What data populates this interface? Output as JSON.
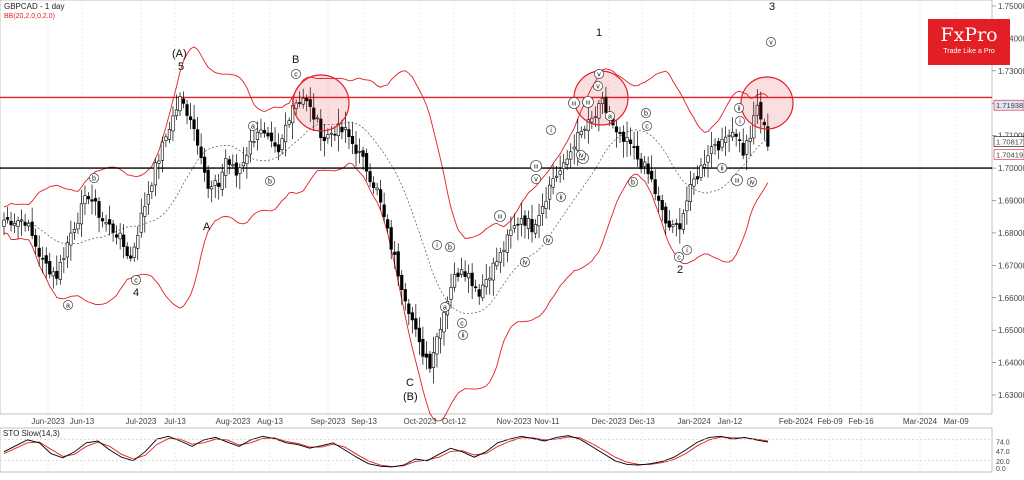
{
  "header": {
    "symbol": "GBPCAD - 1 day",
    "indicator": "BB(20,2.0,0,2.0)",
    "stoch_label": "STO Slow(14,3)"
  },
  "logo": {
    "name": "FxPro",
    "tagline": "Trade Like a Pro"
  },
  "colors": {
    "up": "#ffffff",
    "down": "#000000",
    "bands": "#e31e24",
    "mid": "#555555",
    "stoch_k": "#000000",
    "stoch_d": "#e31e24",
    "logo_bg": "#e31e24",
    "green_mark": "#2e9a2e"
  },
  "chart_data": [
    {
      "type": "candlestick",
      "title": "GBPCAD - 1 day",
      "ylim": [
        1.625,
        1.755
      ],
      "y_ticks": [
        "1.75000",
        "1.74000",
        "1.73000",
        "1.72000",
        "1.71000",
        "1.70000",
        "1.69000",
        "1.68000",
        "1.67000",
        "1.66000",
        "1.65000",
        "1.64000",
        "1.63000"
      ],
      "x_ticks": [
        "Jun-2023",
        "Jun-13",
        "Jul-2023",
        "Jul-13",
        "Aug-2023",
        "Aug-13",
        "Sep-2023",
        "Sep-13",
        "Oct-2023",
        "Oct-12",
        "Nov-2023",
        "Nov-11",
        "Dec-2023",
        "Dec-13",
        "Jan-2024",
        "Jan-12",
        "Feb-2024",
        "Feb-09",
        "Feb-16",
        "Mar-2024",
        "Mar-09"
      ],
      "horizontal_lines": [
        {
          "value": 1.7218,
          "color": "#e31e24"
        },
        {
          "value": 1.7,
          "color": "#000000"
        }
      ],
      "price_tags": [
        {
          "label": "1.71938",
          "value": 1.7194
        },
        {
          "label": "1.70817",
          "value": 1.7082
        },
        {
          "label": "1.70419",
          "value": 1.7042
        }
      ],
      "close_path": [
        [
          0,
          1.684
        ],
        [
          6,
          1.684
        ],
        [
          11,
          1.671
        ],
        [
          15,
          1.667
        ],
        [
          19,
          1.68
        ],
        [
          24,
          1.692
        ],
        [
          28,
          1.684
        ],
        [
          32,
          1.68
        ],
        [
          36,
          1.672
        ],
        [
          39,
          1.685
        ],
        [
          43,
          1.7
        ],
        [
          47,
          1.713
        ],
        [
          50,
          1.721
        ],
        [
          53,
          1.716
        ],
        [
          56,
          1.705
        ],
        [
          58,
          1.693
        ],
        [
          61,
          1.695
        ],
        [
          63,
          1.703
        ],
        [
          66,
          1.698
        ],
        [
          69,
          1.705
        ],
        [
          72,
          1.712
        ],
        [
          75,
          1.708
        ],
        [
          78,
          1.704
        ],
        [
          80,
          1.713
        ],
        [
          82,
          1.72
        ],
        [
          85,
          1.722
        ],
        [
          88,
          1.716
        ],
        [
          91,
          1.709
        ],
        [
          94,
          1.712
        ],
        [
          97,
          1.711
        ],
        [
          100,
          1.706
        ],
        [
          103,
          1.7
        ],
        [
          106,
          1.693
        ],
        [
          109,
          1.68
        ],
        [
          112,
          1.668
        ],
        [
          115,
          1.657
        ],
        [
          118,
          1.645
        ],
        [
          121,
          1.64
        ],
        [
          124,
          1.652
        ],
        [
          127,
          1.664
        ],
        [
          130,
          1.67
        ],
        [
          132,
          1.667
        ],
        [
          135,
          1.662
        ],
        [
          138,
          1.668
        ],
        [
          141,
          1.673
        ],
        [
          144,
          1.68
        ],
        [
          147,
          1.685
        ],
        [
          150,
          1.682
        ],
        [
          153,
          1.689
        ],
        [
          156,
          1.697
        ],
        [
          159,
          1.7
        ],
        [
          162,
          1.708
        ],
        [
          165,
          1.712
        ],
        [
          168,
          1.716
        ],
        [
          170,
          1.72
        ],
        [
          172,
          1.715
        ],
        [
          174,
          1.71
        ],
        [
          176,
          1.708
        ],
        [
          178,
          1.707
        ],
        [
          180,
          1.703
        ],
        [
          182,
          1.7
        ],
        [
          184,
          1.696
        ],
        [
          186,
          1.689
        ],
        [
          188,
          1.683
        ],
        [
          190,
          1.681
        ],
        [
          192,
          1.683
        ],
        [
          194,
          1.69
        ],
        [
          196,
          1.696
        ],
        [
          198,
          1.7
        ],
        [
          200,
          1.705
        ],
        [
          202,
          1.708
        ],
        [
          204,
          1.707
        ],
        [
          206,
          1.712
        ],
        [
          208,
          1.711
        ],
        [
          210,
          1.705
        ],
        [
          212,
          1.71
        ],
        [
          214,
          1.719
        ],
        [
          216,
          1.712
        ],
        [
          217,
          1.708
        ]
      ],
      "candle_count": 218
    },
    {
      "type": "line",
      "title": "STO Slow(14,3)",
      "ylim": [
        0,
        100
      ],
      "y_ticks": [
        "74.0",
        "47.0",
        "20.0",
        "0.0"
      ],
      "series": [
        {
          "values": [
            45,
            62,
            78,
            70,
            40,
            28,
            45,
            70,
            75,
            50,
            30,
            20,
            45,
            80,
            88,
            75,
            60,
            78,
            85,
            72,
            60,
            78,
            88,
            82,
            70,
            65,
            55,
            62,
            70,
            50,
            30,
            12,
            5,
            3,
            8,
            25,
            20,
            38,
            55,
            45,
            30,
            45,
            70,
            80,
            88,
            82,
            75,
            85,
            90,
            80,
            60,
            40,
            20,
            10,
            8,
            12,
            18,
            30,
            50,
            72,
            85,
            88,
            80,
            85,
            78,
            72
          ]
        },
        {
          "values": [
            40,
            55,
            70,
            72,
            52,
            32,
            38,
            60,
            72,
            60,
            38,
            25,
            35,
            65,
            82,
            80,
            66,
            70,
            80,
            78,
            64,
            70,
            82,
            84,
            74,
            68,
            58,
            58,
            66,
            58,
            38,
            20,
            8,
            4,
            6,
            18,
            22,
            30,
            46,
            48,
            36,
            40,
            60,
            74,
            84,
            84,
            78,
            80,
            86,
            84,
            68,
            50,
            30,
            16,
            10,
            10,
            15,
            24,
            40,
            62,
            78,
            86,
            84,
            84,
            80,
            75
          ]
        }
      ]
    }
  ],
  "waves": [
    {
      "id": "wave-A-paren",
      "text": "(A)"
    },
    {
      "id": "wave-5",
      "text": "5"
    },
    {
      "id": "wave-A",
      "text": "A"
    },
    {
      "id": "wave-B",
      "text": "B"
    },
    {
      "id": "wave-4",
      "text": "4"
    },
    {
      "id": "wave-C",
      "text": "C"
    },
    {
      "id": "wave-B-paren",
      "text": "(B)"
    },
    {
      "id": "wave-1",
      "text": "1"
    },
    {
      "id": "wave-2",
      "text": "2"
    },
    {
      "id": "wave-3",
      "text": "3"
    }
  ],
  "subwaves": [
    {
      "id": "sw-b1",
      "text": "b"
    },
    {
      "id": "sw-c1",
      "text": "c"
    },
    {
      "id": "sw-a1",
      "text": "a"
    },
    {
      "id": "sw-a2",
      "text": "a"
    },
    {
      "id": "sw-b2",
      "text": "b"
    },
    {
      "id": "sw-c2",
      "text": "c"
    },
    {
      "id": "sw-i1",
      "text": "i"
    },
    {
      "id": "sw-b3",
      "text": "b"
    },
    {
      "id": "sw-a3",
      "text": "a"
    },
    {
      "id": "sw-c3",
      "text": "c"
    },
    {
      "id": "sw-ii1",
      "text": "ii"
    },
    {
      "id": "sw-iii1",
      "text": "iii"
    },
    {
      "id": "sw-iv1",
      "text": "iv"
    },
    {
      "id": "sw-iii2",
      "text": "iii"
    },
    {
      "id": "sw-iv2",
      "text": "iv"
    },
    {
      "id": "sw-i2",
      "text": "i"
    },
    {
      "id": "sw-ii2",
      "text": "ii"
    },
    {
      "id": "sw-iii3",
      "text": "iii"
    },
    {
      "id": "sw-v1",
      "text": "v"
    },
    {
      "id": "sw-iv3",
      "text": "iv"
    },
    {
      "id": "sw-iii4",
      "text": "iii"
    },
    {
      "id": "sw-v2",
      "text": "v"
    },
    {
      "id": "sw-v3",
      "text": "v"
    },
    {
      "id": "sw-a4",
      "text": "a"
    },
    {
      "id": "sw-b4",
      "text": "b"
    },
    {
      "id": "sw-c4",
      "text": "c"
    },
    {
      "id": "sw-b5",
      "text": "b"
    },
    {
      "id": "sw-c5",
      "text": "c"
    },
    {
      "id": "sw-i3",
      "text": "i"
    },
    {
      "id": "sw-ii3",
      "text": "ii"
    },
    {
      "id": "sw-iii5",
      "text": "iii"
    },
    {
      "id": "sw-iv4",
      "text": "iv"
    },
    {
      "id": "sw-ii4",
      "text": "ii"
    },
    {
      "id": "sw-i4",
      "text": "i"
    },
    {
      "id": "sw-v4",
      "text": "v"
    },
    {
      "id": "sw-iii6",
      "text": "iii"
    }
  ]
}
